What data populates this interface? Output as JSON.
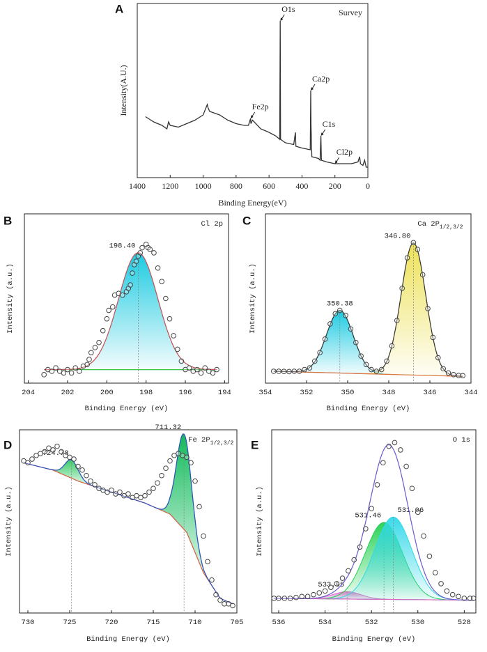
{
  "chart_data": [
    {
      "type": "line",
      "panel": "A",
      "title": "Survey",
      "xlabel": "Binding Energy(eV)",
      "ylabel": "Intensity(A.U.)",
      "color": "#333333",
      "xlim": [
        1400,
        0
      ],
      "ylim": [
        0,
        100
      ],
      "xticks": [
        1400,
        1200,
        1000,
        800,
        600,
        400,
        200,
        0
      ],
      "x": [
        1350,
        1300,
        1250,
        1220,
        1210,
        1200,
        1150,
        1100,
        1050,
        1000,
        975,
        970,
        960,
        900,
        850,
        800,
        750,
        725,
        712,
        710,
        700,
        650,
        600,
        560,
        535,
        532,
        530,
        500,
        450,
        440,
        437,
        400,
        350,
        347,
        345,
        340,
        300,
        290,
        285,
        282,
        250,
        200,
        150,
        100,
        60,
        50,
        45,
        30,
        20,
        10,
        0
      ],
      "values": [
        35,
        32,
        30,
        28,
        32,
        30,
        29,
        31,
        33,
        36,
        42,
        40,
        38,
        36,
        33,
        31,
        30,
        30,
        34,
        31,
        33,
        28,
        26,
        24,
        22,
        90,
        22,
        20,
        19,
        26,
        18,
        17,
        16,
        50,
        30,
        12,
        11,
        10,
        24,
        10,
        9,
        8,
        8,
        8,
        9,
        12,
        8,
        7,
        10,
        6,
        6
      ],
      "annotations": [
        {
          "text": "O1s",
          "x": 532,
          "y": 90
        },
        {
          "text": "Fe2p",
          "x": 712,
          "y": 34
        },
        {
          "text": "Ca2p",
          "x": 347,
          "y": 50
        },
        {
          "text": "C1s",
          "x": 285,
          "y": 24
        },
        {
          "text": "Cl2p",
          "x": 200,
          "y": 8
        }
      ]
    },
    {
      "type": "xps",
      "panel": "B",
      "title": "Cl 2p",
      "xlabel": "Binding Energy (eV)",
      "ylabel": "Intensity (a.u.)",
      "marker_color": "#444444",
      "envelope_color": "#d05050",
      "xlim": [
        204.2,
        193.8
      ],
      "ylim": [
        0,
        100
      ],
      "xticks": [
        204,
        202,
        200,
        198,
        196,
        194
      ],
      "x": [
        203.2,
        203,
        202.8,
        202.6,
        202.4,
        202.2,
        202,
        201.8,
        201.6,
        201.4,
        201.2,
        201,
        200.9,
        200.8,
        200.6,
        200.4,
        200.2,
        200,
        199.9,
        199.7,
        199.6,
        199.4,
        199.2,
        199,
        198.9,
        198.8,
        198.7,
        198.6,
        198.5,
        198.4,
        198.3,
        198.2,
        198,
        197.9,
        197.8,
        197.6,
        197.4,
        197.2,
        197,
        196.8,
        196.6,
        196.4,
        196.2,
        196,
        195.8,
        195.6,
        195.4,
        195.2,
        195,
        194.8,
        194.6,
        194.4
      ],
      "values": [
        5,
        8,
        7,
        9,
        7,
        6,
        8,
        6,
        9,
        7,
        10,
        11,
        14,
        18,
        21,
        24,
        31,
        38,
        43,
        45,
        52,
        53,
        52,
        54,
        56,
        58,
        65,
        70,
        72,
        75,
        77,
        80,
        82,
        80,
        79,
        77,
        68,
        60,
        50,
        38,
        28,
        20,
        13,
        8,
        9,
        7,
        8,
        6,
        9,
        7,
        6,
        8
      ],
      "background": {
        "color": "#40c040",
        "x": [
          203.2,
          194.4
        ],
        "values": [
          8,
          8
        ]
      },
      "components": [
        {
          "center": 198.4,
          "label": "198.40",
          "height": 69,
          "width": 1.0,
          "color": "#10c8e0"
        }
      ]
    },
    {
      "type": "xps",
      "panel": "C",
      "title": "Ca 2P",
      "title_sub": "1/2,3/2",
      "xlabel": "Binding Energy (eV)",
      "ylabel": "Intensity (a.u.)",
      "marker_color": "#444444",
      "envelope_color": "#333333",
      "xlim": [
        354,
        344
      ],
      "ylim": [
        0,
        100
      ],
      "xticks": [
        354,
        352,
        350,
        348,
        346,
        344
      ],
      "x": [
        353.6,
        353.35,
        353.1,
        352.85,
        352.6,
        352.35,
        352.1,
        351.85,
        351.6,
        351.35,
        351.1,
        350.85,
        350.6,
        350.38,
        350.1,
        349.85,
        349.6,
        349.35,
        349.1,
        348.85,
        348.6,
        348.35,
        348.1,
        347.85,
        347.6,
        347.35,
        347.1,
        346.8,
        346.6,
        346.35,
        346.1,
        345.85,
        345.6,
        345.35,
        345.1,
        344.85,
        344.6,
        344.4
      ],
      "values": [
        7,
        7,
        6.9,
        6.8,
        7,
        7,
        8,
        9,
        13,
        18,
        26,
        35,
        41,
        43,
        40,
        32,
        24,
        16,
        11,
        8,
        7,
        8,
        13,
        22,
        37,
        56,
        74,
        83,
        79,
        64,
        44,
        27,
        15,
        8.5,
        6,
        5,
        4.5,
        4.4
      ],
      "background": {
        "color": "#e07040",
        "x": [
          353.6,
          344.4
        ],
        "values": [
          7,
          4
        ]
      },
      "components": [
        {
          "center": 350.38,
          "label": "350.38",
          "height": 37,
          "width": 0.65,
          "color": "#10c8e0"
        },
        {
          "center": 346.8,
          "label": "346.80",
          "height": 78,
          "width": 0.6,
          "color": "#ece050"
        }
      ]
    },
    {
      "type": "xps",
      "panel": "D",
      "title": "Fe 2P",
      "title_sub": "1/2,3/2",
      "xlabel": "Binding Energy (eV)",
      "ylabel": "Intensity (a.u.)",
      "marker_color": "#444444",
      "envelope_color": "#3050c0",
      "xlim": [
        731,
        705
      ],
      "ylim": [
        0,
        100
      ],
      "xticks": [
        730,
        725,
        720,
        715,
        710,
        705
      ],
      "x": [
        730.5,
        730,
        729.5,
        729,
        728.5,
        728,
        727.5,
        727,
        726.5,
        726,
        725.5,
        725,
        724.5,
        724,
        723.5,
        723,
        722.5,
        722,
        721.5,
        721,
        720.5,
        720,
        719.5,
        719,
        718.5,
        718,
        717.5,
        717,
        716.5,
        716,
        715.5,
        715,
        714.5,
        714,
        713.5,
        713,
        712.5,
        712,
        711.5,
        711,
        710.5,
        710,
        709.5,
        709,
        708.5,
        708,
        707.5,
        707,
        706.5,
        706,
        705.5
      ],
      "values": [
        83,
        82,
        84,
        86,
        87,
        88,
        90,
        89,
        91,
        88,
        86,
        85,
        84,
        80,
        78,
        75,
        72,
        70,
        68,
        67,
        66,
        67,
        65,
        66,
        64,
        65,
        63,
        64,
        63,
        64,
        66,
        68,
        71,
        75,
        79,
        83,
        86,
        87,
        86,
        85,
        82,
        72,
        58,
        42,
        28,
        18,
        10,
        7,
        5,
        5,
        4
      ],
      "background": {
        "color": "#e0604a",
        "x": [
          730.5,
          727,
          724,
          720,
          716,
          713,
          711,
          709,
          707,
          705.5
        ],
        "values": [
          82,
          78,
          72,
          66,
          60,
          54,
          44,
          22,
          8,
          5
        ]
      },
      "components": [
        {
          "center": 724.78,
          "label": "724.78",
          "height": 10,
          "width": 0.8,
          "color": "#30c860"
        },
        {
          "center": 711.32,
          "label": "711.32",
          "height": 52,
          "width": 0.9,
          "color": "#00b850"
        }
      ]
    },
    {
      "type": "xps",
      "panel": "E",
      "title": "O 1s",
      "xlabel": "Binding Energy (eV)",
      "ylabel": "Intensity (a.u.)",
      "marker_color": "#444444",
      "envelope_color": "#6a5acd",
      "xlim": [
        536.3,
        527.5
      ],
      "ylim": [
        0,
        100
      ],
      "xticks": [
        536,
        534,
        532,
        530,
        528
      ],
      "x": [
        536.2,
        536,
        535.75,
        535.5,
        535.25,
        535,
        534.75,
        534.5,
        534.25,
        534,
        533.75,
        533.5,
        533.25,
        533,
        532.75,
        532.5,
        532.25,
        532,
        531.75,
        531.5,
        531.25,
        531,
        530.75,
        530.5,
        530.25,
        530,
        529.75,
        529.5,
        529.25,
        529,
        528.75,
        528.5,
        528.25,
        528,
        527.75,
        527.6
      ],
      "values": [
        8,
        8,
        8,
        8,
        8.5,
        9,
        9,
        10,
        11,
        12,
        14,
        16,
        19,
        23,
        29,
        36,
        46,
        57,
        70,
        82,
        91,
        93,
        89,
        80,
        68,
        55,
        42,
        31,
        22,
        16,
        12,
        10,
        9,
        8,
        8,
        8
      ],
      "background": {
        "color": "#e060c0",
        "x": [
          536.2,
          527.6
        ],
        "values": [
          8,
          7
        ]
      },
      "components": [
        {
          "center": 533.05,
          "label": "533.05",
          "height": 4,
          "width": 0.6,
          "color": "#e070d0"
        },
        {
          "center": 531.46,
          "label": "531.46",
          "height": 42,
          "width": 0.8,
          "color": "#20d050"
        },
        {
          "center": 531.06,
          "label": "531.06",
          "height": 45,
          "width": 0.8,
          "color": "#30d8e8"
        }
      ]
    }
  ]
}
